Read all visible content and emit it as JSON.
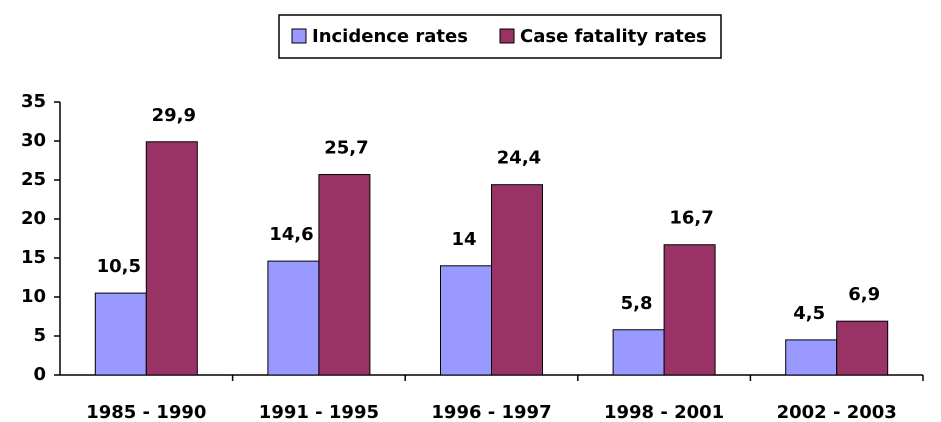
{
  "chart_data": {
    "type": "bar",
    "categories": [
      "1985 - 1990",
      "1991 - 1995",
      "1996 - 1997",
      "1998 - 2001",
      "2002 - 2003"
    ],
    "series": [
      {
        "name": "Incidence rates",
        "color": "#9999ff",
        "values": [
          10.5,
          14.6,
          14,
          5.8,
          4.5
        ],
        "value_labels": [
          "10,5",
          "14,6",
          "14",
          "5,8",
          "4,5"
        ]
      },
      {
        "name": "Case fatality rates",
        "color": "#993366",
        "values": [
          29.9,
          25.7,
          24.4,
          16.7,
          6.9
        ],
        "value_labels": [
          "29,9",
          "25,7",
          "24,4",
          "16,7",
          "6,9"
        ]
      }
    ],
    "ylim": [
      0,
      35
    ],
    "yticks": [
      0,
      5,
      10,
      15,
      20,
      25,
      30,
      35
    ],
    "grid": false,
    "legend": "top"
  }
}
